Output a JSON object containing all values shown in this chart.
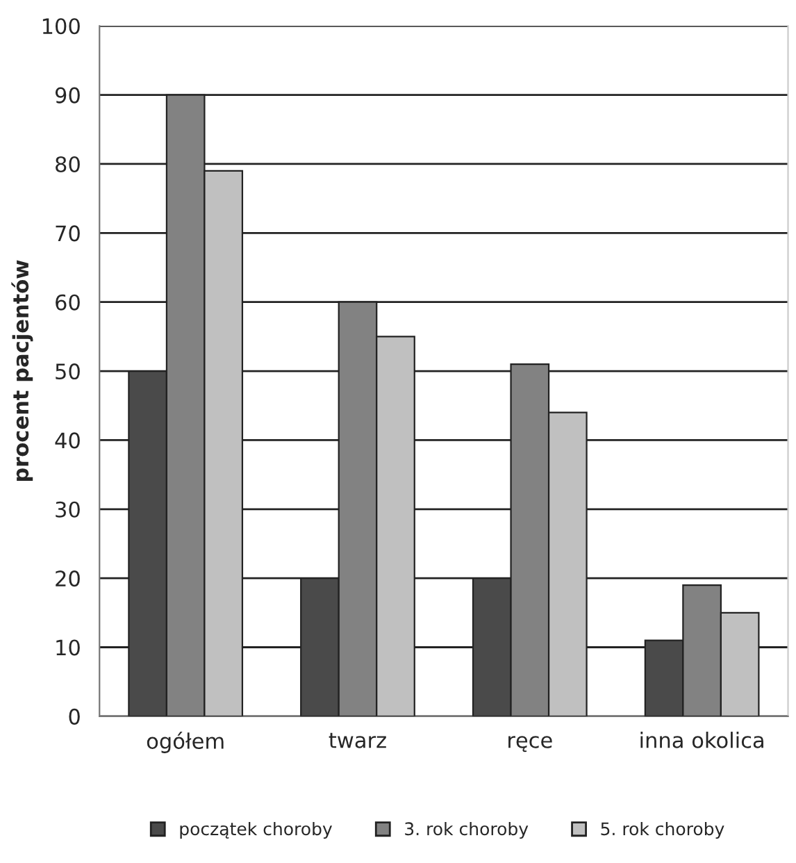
{
  "chart_data": {
    "type": "bar",
    "ylabel": "procent pacjentów",
    "categories": [
      "ogółem",
      "twarz",
      "ręce",
      "inna okolica"
    ],
    "series": [
      {
        "name": "początek choroby",
        "color": "#4a4a4a",
        "values": [
          50,
          20,
          20,
          11
        ]
      },
      {
        "name": "3. rok choroby",
        "color": "#828282",
        "values": [
          90,
          60,
          51,
          19
        ]
      },
      {
        "name": "5. rok choroby",
        "color": "#c0c0c0",
        "values": [
          79,
          55,
          44,
          15
        ]
      }
    ],
    "ylim": [
      0,
      100
    ],
    "yticks": [
      0,
      10,
      20,
      30,
      40,
      50,
      60,
      70,
      80,
      90,
      100
    ],
    "grid": "y",
    "legend": "bottom"
  }
}
